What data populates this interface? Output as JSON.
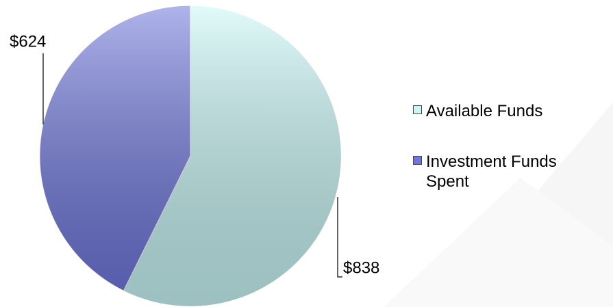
{
  "chart_data": {
    "type": "pie",
    "categories": [
      "Available Funds",
      "Investment Funds Spent"
    ],
    "values": [
      838,
      624
    ],
    "value_labels": [
      "$838",
      "$624"
    ],
    "colors": [
      "#c9f7f7",
      "#6e76dc"
    ]
  }
}
